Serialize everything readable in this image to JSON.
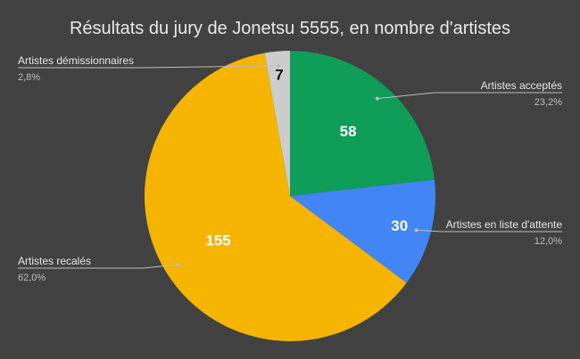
{
  "chart_data": {
    "type": "pie",
    "title": "Résultats du jury de Jonetsu 5555, en nombre d'artistes",
    "legend": "callouts",
    "slices": [
      {
        "name": "Artistes acceptés",
        "value": 58,
        "label": "58",
        "percent_label": "23,2%",
        "color": "#0f9d58"
      },
      {
        "name": "Artistes en liste d'attente",
        "value": 30,
        "label": "30",
        "percent_label": "12,0%",
        "color": "#4285f4"
      },
      {
        "name": "Artistes recalés",
        "value": 155,
        "label": "155",
        "percent_label": "62,0%",
        "color": "#f4b400"
      },
      {
        "name": "Artistes démissionnaires",
        "value": 7,
        "label": "7",
        "percent_label": "2,8%",
        "color": "#cccccc"
      }
    ]
  }
}
